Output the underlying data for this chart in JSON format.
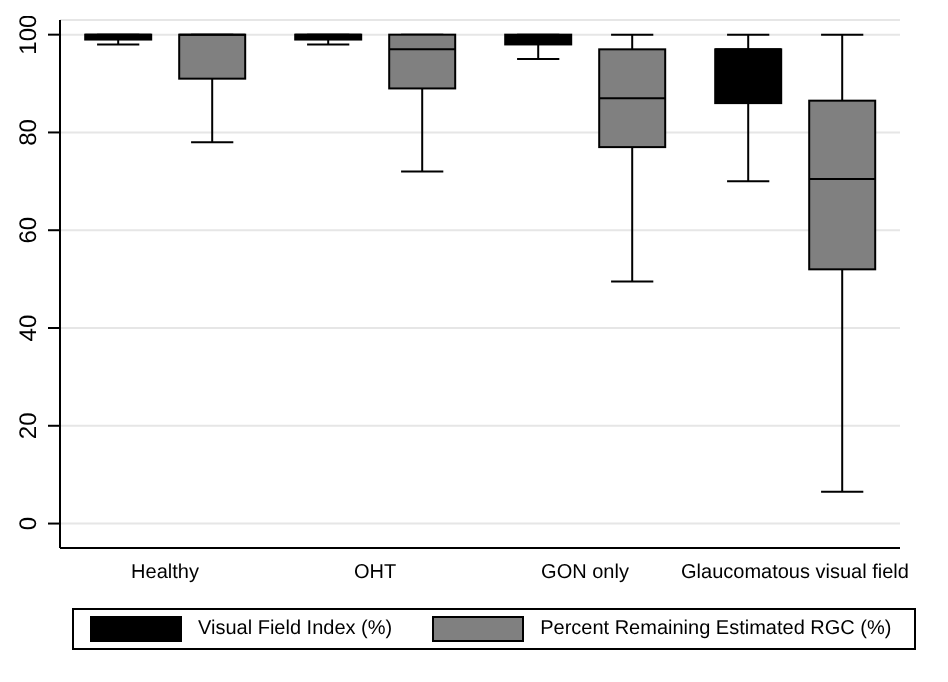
{
  "chart_data": {
    "type": "box",
    "categories": [
      "Healthy",
      "OHT",
      "GON only",
      "Glaucomatous visual field"
    ],
    "ylim": [
      -5,
      103
    ],
    "yticks": [
      0,
      20,
      40,
      60,
      80,
      100
    ],
    "grid": "y",
    "legend": "bottom",
    "series": [
      {
        "name": "Visual Field Index (%)",
        "color": "#000000",
        "boxes": [
          {
            "low": 98,
            "q1": 99,
            "median": 100,
            "q3": 100,
            "high": 100
          },
          {
            "low": 98,
            "q1": 99,
            "median": 100,
            "q3": 100,
            "high": 100
          },
          {
            "low": 95,
            "q1": 98,
            "median": 99,
            "q3": 100,
            "high": 100
          },
          {
            "low": 70,
            "q1": 86,
            "median": 97,
            "q3": 97,
            "high": 100
          }
        ]
      },
      {
        "name": "Percent Remaining Estimated RGC (%)",
        "color": "#808080",
        "boxes": [
          {
            "low": 78,
            "q1": 91,
            "median": 100,
            "q3": 100,
            "high": 100
          },
          {
            "low": 72,
            "q1": 89,
            "median": 97,
            "q3": 100,
            "high": 100
          },
          {
            "low": 49.5,
            "q1": 77,
            "median": 87,
            "q3": 97,
            "high": 100
          },
          {
            "low": 6.5,
            "q1": 52,
            "median": 70.5,
            "q3": 86.5,
            "high": 100
          }
        ]
      }
    ]
  }
}
